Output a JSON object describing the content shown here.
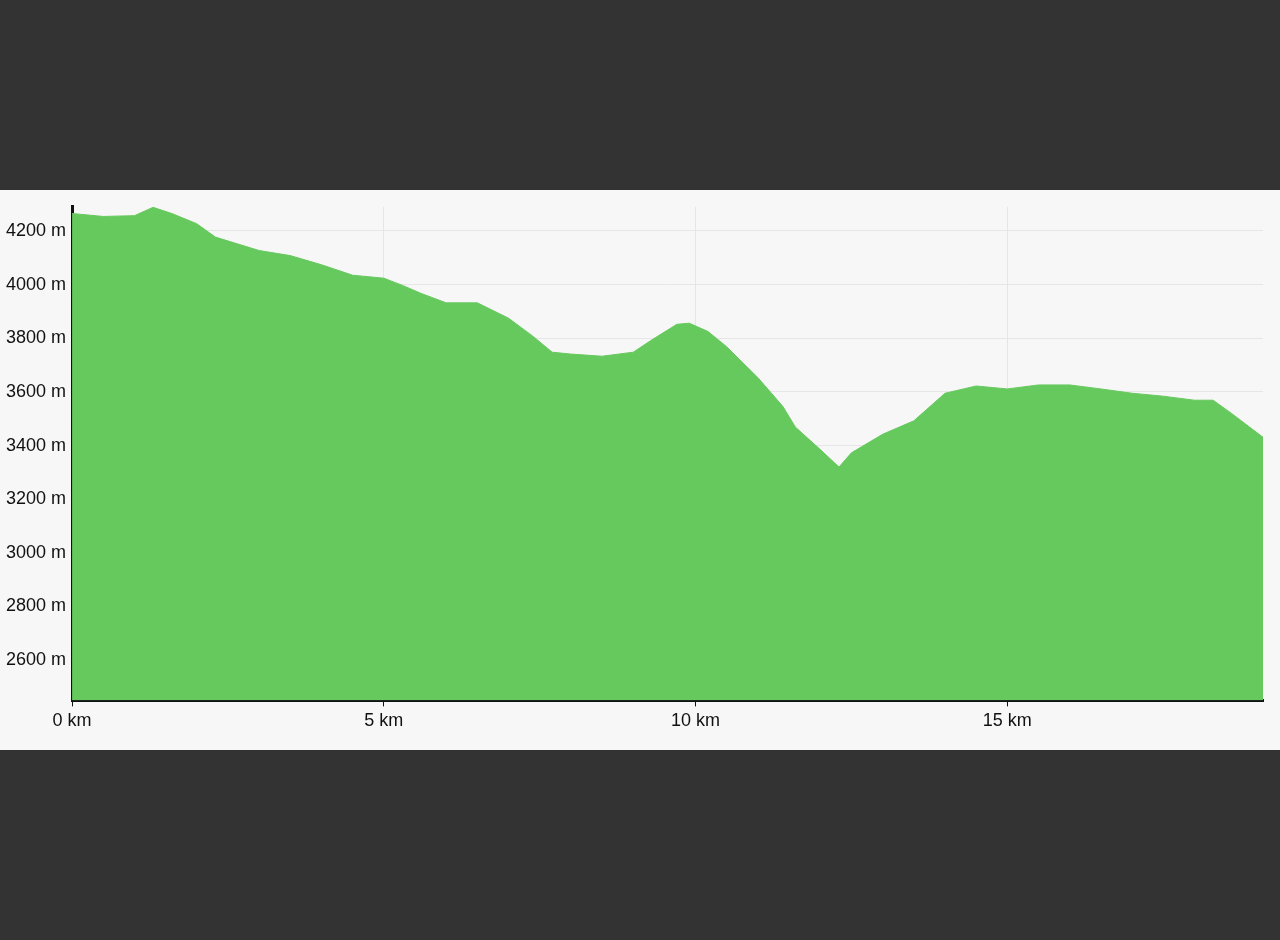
{
  "chart_data": {
    "type": "area",
    "color": "#66c95e",
    "grid": true,
    "x": [
      0,
      0.5,
      1.0,
      1.3,
      1.6,
      2.0,
      2.3,
      3.0,
      3.5,
      4.0,
      4.5,
      5.0,
      5.3,
      5.6,
      6.0,
      6.5,
      7.0,
      7.4,
      7.7,
      8.0,
      8.5,
      9.0,
      9.3,
      9.7,
      9.9,
      10.2,
      10.5,
      11.0,
      11.4,
      11.6,
      12.0,
      12.3,
      12.5,
      13.0,
      13.5,
      14.0,
      14.5,
      15.0,
      15.5,
      16.0,
      16.5,
      17.0,
      17.5,
      18.0,
      18.3,
      18.6,
      19.1
    ],
    "values": [
      4265,
      4254,
      4257,
      4288,
      4265,
      4227,
      4177,
      4127,
      4108,
      4074,
      4035,
      4024,
      3997,
      3967,
      3932,
      3932,
      3875,
      3806,
      3748,
      3741,
      3733,
      3748,
      3794,
      3852,
      3856,
      3825,
      3768,
      3653,
      3546,
      3469,
      3385,
      3320,
      3373,
      3442,
      3492,
      3595,
      3622,
      3611,
      3626,
      3626,
      3611,
      3595,
      3584,
      3569,
      3569,
      3519,
      3431
    ],
    "xlim": [
      0,
      19.1
    ],
    "xticks": [
      {
        "value": 0,
        "label": "0 km"
      },
      {
        "value": 5,
        "label": "5 km"
      },
      {
        "value": 10,
        "label": "10 km"
      },
      {
        "value": 15,
        "label": "15 km"
      }
    ],
    "ylim": [
      2450,
      4290
    ],
    "yticks": [
      {
        "value": 2600,
        "label": "2600 m"
      },
      {
        "value": 2800,
        "label": "2800 m"
      },
      {
        "value": 3000,
        "label": "3000 m"
      },
      {
        "value": 3200,
        "label": "3200 m"
      },
      {
        "value": 3400,
        "label": "3400 m"
      },
      {
        "value": 3600,
        "label": "3600 m"
      },
      {
        "value": 3800,
        "label": "3800 m"
      },
      {
        "value": 4000,
        "label": "4000 m"
      },
      {
        "value": 4200,
        "label": "4200 m"
      }
    ]
  }
}
